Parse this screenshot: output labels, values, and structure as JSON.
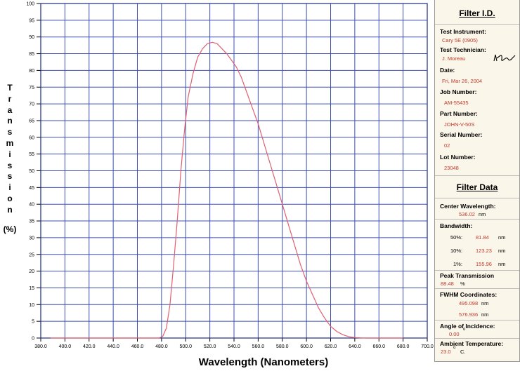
{
  "chart_data": {
    "type": "line",
    "xlabel": "Wavelength (Nanometers)",
    "ylabel_chars": [
      "T",
      "r",
      "a",
      "n",
      "s",
      "m",
      "i",
      "s",
      "s",
      "i",
      "o",
      "n"
    ],
    "ylabel_unit": "(%)",
    "xlim": [
      380,
      700
    ],
    "ylim": [
      0,
      100
    ],
    "x_ticks": [
      "380.0",
      "400.0",
      "420.0",
      "440.0",
      "460.0",
      "480.0",
      "500.0",
      "520.0",
      "540.0",
      "560.0",
      "580.0",
      "600.0",
      "620.0",
      "640.0",
      "660.0",
      "680.0",
      "700.0"
    ],
    "y_ticks": [
      "0",
      "5",
      "10",
      "15",
      "20",
      "25",
      "30",
      "35",
      "40",
      "45",
      "50",
      "55",
      "60",
      "65",
      "70",
      "75",
      "80",
      "85",
      "90",
      "95",
      "100"
    ],
    "grid": true,
    "series": [
      {
        "color": "#e06070",
        "x": [
          388,
          470,
          478,
          481,
          484,
          487,
          490,
          493,
          496,
          499,
          502,
          506,
          510,
          514,
          518,
          522,
          526,
          530,
          534,
          538,
          542,
          546,
          550,
          555,
          560,
          565,
          570,
          575,
          580,
          585,
          590,
          595,
          600,
          605,
          610,
          615,
          620,
          625,
          630,
          635,
          640,
          645,
          650,
          660,
          680
        ],
        "y": [
          0,
          0,
          0,
          0.5,
          3,
          10,
          22,
          35,
          50,
          62,
          72,
          79,
          84,
          86.5,
          88,
          88.4,
          88,
          86.5,
          85,
          83,
          81,
          78,
          74,
          69,
          64,
          58,
          52,
          46,
          40,
          34,
          28,
          22,
          17,
          13,
          9,
          6,
          3.5,
          2,
          1,
          0.4,
          0.15,
          0.05,
          0,
          0,
          0
        ]
      }
    ]
  },
  "panel": {
    "filter_id_title": "Filter I.D.",
    "test_instrument_label": "Test Instrument:",
    "test_instrument_value": "Cary 5E (0905)",
    "test_technician_label": "Test Technician:",
    "test_technician_value": "J. Moreau",
    "date_label": "Date:",
    "date_value": "Fri, Mar 26, 2004",
    "job_number_label": "Job Number:",
    "job_number_value": "AM-55435",
    "part_number_label": "Part Number:",
    "part_number_value": "JOHN-V-50S",
    "serial_number_label": "Serial Number:",
    "serial_number_value": "02",
    "lot_number_label": "Lot Number:",
    "lot_number_value": "23048",
    "filter_data_title": "Filter Data",
    "center_wavelength_label": "Center Wavelength:",
    "center_wavelength_value": "536.02",
    "nm": "nm",
    "bandwidth_label": "Bandwidth:",
    "bw_50_label": "50%:",
    "bw_50_value": "81.84",
    "bw_10_label": "10%:",
    "bw_10_value": "123.23",
    "bw_1_label": "1%:",
    "bw_1_value": "155.96",
    "peak_transmission_label": "Peak Transmission",
    "peak_transmission_value": "88.48",
    "percent": "%",
    "fwhm_label": "FWHM Coordinates:",
    "fwhm_value_1": "495.098",
    "fwhm_value_2": "576.936",
    "angle_label": "Angle of Incidence:",
    "angle_value": "0.00",
    "degree": "o",
    "ambient_label": "Ambient Temperature:",
    "ambient_value": "23.0",
    "celsius": "C."
  }
}
